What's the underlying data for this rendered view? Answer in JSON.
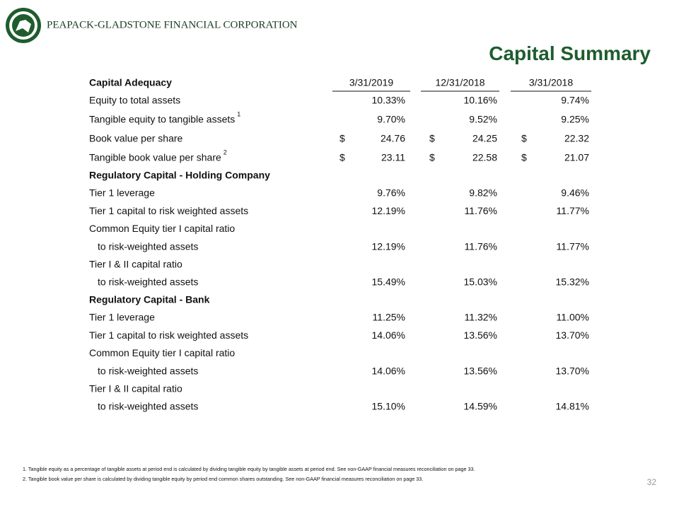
{
  "header": {
    "company": "PEAPACK-GLADSTONE FINANCIAL CORPORATION",
    "title": "Capital Summary"
  },
  "table": {
    "columns": [
      "Capital Adequacy",
      "3/31/2019",
      "12/31/2018",
      "3/31/2018"
    ],
    "sections": [
      {
        "rows": [
          {
            "label": "Equity to total assets",
            "values": [
              "10.33%",
              "10.16%",
              "9.74%"
            ]
          },
          {
            "label": "Tangible equity to tangible assets",
            "note": "1",
            "values": [
              "9.70%",
              "9.52%",
              "9.25%"
            ]
          },
          {
            "label": "Book value per share",
            "currency": "$",
            "values": [
              "24.76",
              "24.25",
              "22.32"
            ]
          },
          {
            "label": "Tangible book value per share",
            "note": "2",
            "currency": "$",
            "values": [
              "23.11",
              "22.58",
              "21.07"
            ]
          }
        ]
      },
      {
        "heading": "Regulatory Capital - Holding Company",
        "rows": [
          {
            "label": "Tier 1 leverage",
            "values": [
              "9.76%",
              "9.82%",
              "9.46%"
            ]
          },
          {
            "label": "Tier 1 capital to risk weighted assets",
            "values": [
              "12.19%",
              "11.76%",
              "11.77%"
            ]
          },
          {
            "label": "Common Equity tier I capital ratio"
          },
          {
            "label": "to risk-weighted assets",
            "indent": true,
            "values": [
              "12.19%",
              "11.76%",
              "11.77%"
            ]
          },
          {
            "label": "Tier I & II capital ratio"
          },
          {
            "label": "to risk-weighted assets",
            "indent": true,
            "values": [
              "15.49%",
              "15.03%",
              "15.32%"
            ]
          }
        ]
      },
      {
        "heading": "Regulatory Capital - Bank",
        "rows": [
          {
            "label": "Tier 1 leverage",
            "values": [
              "11.25%",
              "11.32%",
              "11.00%"
            ]
          },
          {
            "label": "Tier 1 capital to risk weighted assets",
            "values": [
              "14.06%",
              "13.56%",
              "13.70%"
            ]
          },
          {
            "label": "Common Equity tier I capital ratio"
          },
          {
            "label": "to risk-weighted assets",
            "indent": true,
            "values": [
              "14.06%",
              "13.56%",
              "13.70%"
            ]
          },
          {
            "label": "Tier I & II capital ratio"
          },
          {
            "label": "to risk-weighted assets",
            "indent": true,
            "values": [
              "15.10%",
              "14.59%",
              "14.81%"
            ]
          }
        ]
      }
    ]
  },
  "footnotes": [
    "1. Tangible equity as a percentage of tangible assets at period end is calculated by dividing tangible equity by tangible assets at period end.  See non-GAAP financial measures reconciliation on page 33.",
    "2. Tangible book value per share is calculated by dividing tangible equity by period end common shares outstanding. See non-GAAP financial measures reconciliation on page 33."
  ],
  "page_number": "32"
}
